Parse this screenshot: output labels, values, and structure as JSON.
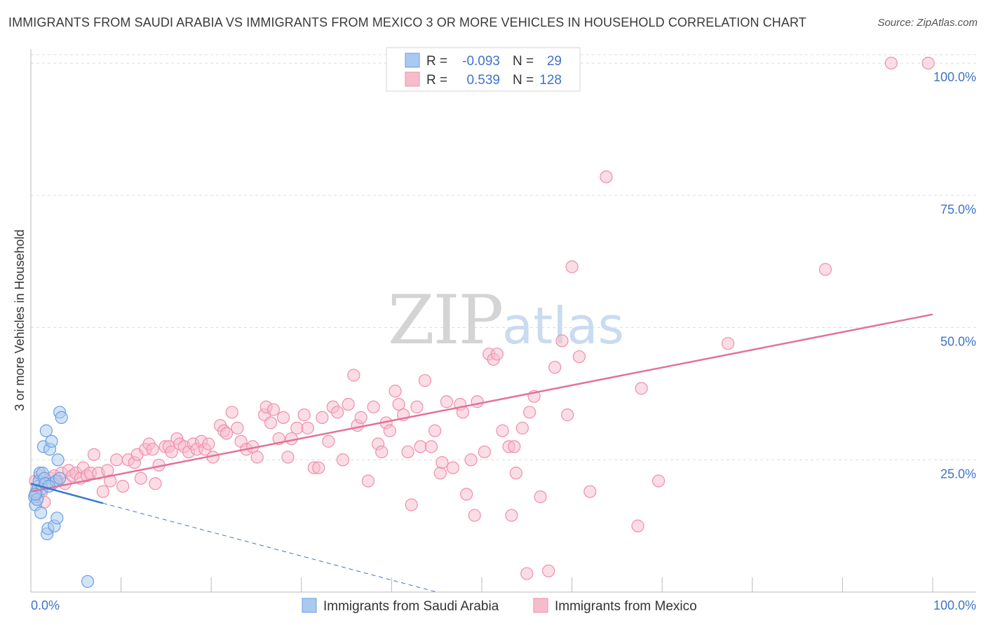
{
  "header": {
    "title": "IMMIGRANTS FROM SAUDI ARABIA VS IMMIGRANTS FROM MEXICO 3 OR MORE VEHICLES IN HOUSEHOLD CORRELATION CHART",
    "source": "Source: ZipAtlas.com"
  },
  "watermark": {
    "zip": "ZIP",
    "atlas": "atlas"
  },
  "colors": {
    "saudi_fill": "#a9c9f0",
    "saudi_stroke": "#6a9fe0",
    "saudi_line": "#3f78cf",
    "mexico_fill": "#f7bccb",
    "mexico_stroke": "#ee8fac",
    "mexico_line": "#e2729a",
    "accent_text": "#3f74c9",
    "grid": "#dcdcdc"
  },
  "legend_stats": {
    "rows": [
      {
        "r_label": "R =",
        "r_value": "-0.093",
        "n_label": "N =",
        "n_value": "29"
      },
      {
        "r_label": "R =",
        "r_value": "0.539",
        "n_label": "N =",
        "n_value": "128"
      }
    ]
  },
  "chart_data": {
    "type": "scatter",
    "title": "IMMIGRANTS FROM SAUDI ARABIA VS IMMIGRANTS FROM MEXICO 3 OR MORE VEHICLES IN HOUSEHOLD CORRELATION CHART",
    "xlabel": "",
    "ylabel": "3 or more Vehicles in Household",
    "xlim": [
      0,
      100
    ],
    "ylim": [
      0,
      102
    ],
    "x_tick_labels": {
      "min": "0.0%",
      "max": "100.0%"
    },
    "y_ticks": [
      25,
      50,
      75,
      100
    ],
    "y_tick_labels": [
      "25.0%",
      "50.0%",
      "75.0%",
      "100.0%"
    ],
    "grid": true,
    "legend_position": "bottom-center",
    "series": [
      {
        "name": "Immigrants from Saudi Arabia",
        "r": -0.093,
        "n": 29,
        "trend": {
          "x0": 0,
          "y0": 20.5,
          "x1": 8,
          "y1": 16.8,
          "solid_until": 8,
          "dashed_to_x": 45,
          "dashed_to_y": -1.5
        },
        "points": [
          [
            0.4,
            18.0
          ],
          [
            0.5,
            16.5
          ],
          [
            0.6,
            19.0
          ],
          [
            0.7,
            17.5
          ],
          [
            0.8,
            20.0
          ],
          [
            0.9,
            21.0
          ],
          [
            1.0,
            22.5
          ],
          [
            1.1,
            15.0
          ],
          [
            1.2,
            19.5
          ],
          [
            1.3,
            22.5
          ],
          [
            1.4,
            27.5
          ],
          [
            1.5,
            21.5
          ],
          [
            1.6,
            20.5
          ],
          [
            1.7,
            30.5
          ],
          [
            1.8,
            11.0
          ],
          [
            1.9,
            12.0
          ],
          [
            2.1,
            27.0
          ],
          [
            2.3,
            28.5
          ],
          [
            2.4,
            20.5
          ],
          [
            2.6,
            12.5
          ],
          [
            2.8,
            21.0
          ],
          [
            2.9,
            14.0
          ],
          [
            3.0,
            25.0
          ],
          [
            3.2,
            21.5
          ],
          [
            3.2,
            34.0
          ],
          [
            3.4,
            33.0
          ],
          [
            6.3,
            2.0
          ],
          [
            0.5,
            18.5
          ],
          [
            2.0,
            20.0
          ]
        ]
      },
      {
        "name": "Immigrants from Mexico",
        "r": 0.539,
        "n": 128,
        "trend": {
          "x0": 0,
          "y0": 19.0,
          "x1": 100,
          "y1": 52.5
        },
        "points": [
          [
            0.5,
            21.0
          ],
          [
            0.8,
            18.0
          ],
          [
            1.0,
            22.0
          ],
          [
            1.2,
            19.0
          ],
          [
            1.5,
            17.0
          ],
          [
            1.8,
            20.5
          ],
          [
            2.2,
            21.5
          ],
          [
            2.6,
            22.0
          ],
          [
            3.0,
            21.0
          ],
          [
            3.4,
            22.5
          ],
          [
            3.8,
            20.5
          ],
          [
            4.2,
            23.0
          ],
          [
            4.6,
            22.0
          ],
          [
            5.0,
            22.5
          ],
          [
            5.5,
            21.5
          ],
          [
            5.8,
            23.5
          ],
          [
            6.2,
            22.0
          ],
          [
            6.6,
            22.5
          ],
          [
            7.0,
            26.0
          ],
          [
            7.5,
            22.5
          ],
          [
            8.0,
            19.0
          ],
          [
            8.5,
            23.0
          ],
          [
            8.8,
            21.0
          ],
          [
            9.5,
            25.0
          ],
          [
            10.2,
            20.0
          ],
          [
            10.8,
            25.0
          ],
          [
            11.5,
            24.5
          ],
          [
            11.8,
            26.0
          ],
          [
            12.2,
            21.5
          ],
          [
            12.7,
            27.0
          ],
          [
            13.1,
            28.0
          ],
          [
            13.5,
            27.0
          ],
          [
            13.8,
            20.5
          ],
          [
            14.2,
            24.0
          ],
          [
            14.9,
            27.5
          ],
          [
            15.3,
            27.5
          ],
          [
            15.6,
            26.5
          ],
          [
            16.2,
            29.0
          ],
          [
            16.5,
            28.0
          ],
          [
            17.0,
            27.5
          ],
          [
            17.5,
            26.5
          ],
          [
            18.0,
            28.0
          ],
          [
            18.4,
            27.0
          ],
          [
            18.9,
            28.5
          ],
          [
            19.3,
            27.0
          ],
          [
            19.7,
            28.0
          ],
          [
            20.2,
            25.5
          ],
          [
            21.0,
            31.5
          ],
          [
            21.4,
            30.5
          ],
          [
            21.7,
            30.0
          ],
          [
            22.3,
            34.0
          ],
          [
            22.9,
            31.0
          ],
          [
            23.3,
            28.5
          ],
          [
            23.9,
            27.0
          ],
          [
            24.6,
            27.5
          ],
          [
            25.1,
            25.5
          ],
          [
            25.9,
            33.5
          ],
          [
            26.1,
            35.0
          ],
          [
            26.6,
            32.0
          ],
          [
            26.9,
            34.5
          ],
          [
            27.5,
            29.0
          ],
          [
            28.0,
            33.0
          ],
          [
            28.5,
            25.5
          ],
          [
            28.9,
            29.0
          ],
          [
            29.5,
            31.0
          ],
          [
            30.3,
            33.5
          ],
          [
            30.7,
            31.0
          ],
          [
            31.4,
            23.5
          ],
          [
            31.9,
            23.5
          ],
          [
            32.3,
            33.0
          ],
          [
            33.0,
            28.5
          ],
          [
            33.5,
            35.0
          ],
          [
            34.0,
            34.0
          ],
          [
            34.6,
            25.0
          ],
          [
            35.2,
            35.5
          ],
          [
            35.8,
            41.0
          ],
          [
            36.2,
            31.5
          ],
          [
            36.6,
            33.0
          ],
          [
            37.4,
            21.0
          ],
          [
            38.0,
            35.0
          ],
          [
            38.5,
            28.0
          ],
          [
            38.9,
            26.5
          ],
          [
            39.4,
            32.0
          ],
          [
            39.8,
            30.5
          ],
          [
            40.4,
            38.0
          ],
          [
            40.8,
            35.5
          ],
          [
            41.3,
            33.5
          ],
          [
            41.8,
            26.5
          ],
          [
            42.2,
            16.5
          ],
          [
            42.8,
            35.0
          ],
          [
            43.2,
            27.5
          ],
          [
            43.7,
            40.0
          ],
          [
            44.4,
            27.5
          ],
          [
            44.8,
            30.5
          ],
          [
            45.4,
            22.5
          ],
          [
            45.6,
            24.5
          ],
          [
            46.1,
            36.0
          ],
          [
            46.8,
            23.5
          ],
          [
            47.6,
            35.5
          ],
          [
            47.9,
            34.0
          ],
          [
            48.3,
            18.5
          ],
          [
            48.8,
            25.0
          ],
          [
            49.2,
            14.5
          ],
          [
            49.5,
            36.0
          ],
          [
            50.3,
            26.5
          ],
          [
            50.8,
            45.0
          ],
          [
            51.3,
            44.0
          ],
          [
            51.7,
            45.0
          ],
          [
            52.3,
            30.5
          ],
          [
            53.0,
            27.5
          ],
          [
            53.3,
            14.5
          ],
          [
            53.6,
            27.5
          ],
          [
            53.8,
            22.5
          ],
          [
            54.5,
            31.0
          ],
          [
            55.0,
            3.5
          ],
          [
            55.3,
            34.0
          ],
          [
            55.8,
            37.0
          ],
          [
            56.5,
            18.0
          ],
          [
            57.4,
            4.0
          ],
          [
            58.1,
            42.5
          ],
          [
            58.9,
            47.5
          ],
          [
            59.5,
            33.5
          ],
          [
            60.0,
            61.5
          ],
          [
            60.8,
            44.5
          ],
          [
            62.0,
            19.0
          ],
          [
            63.8,
            78.5
          ],
          [
            67.3,
            12.5
          ],
          [
            67.7,
            38.5
          ],
          [
            69.6,
            21.0
          ],
          [
            77.3,
            47.0
          ],
          [
            88.1,
            61.0
          ],
          [
            95.4,
            100.0
          ],
          [
            99.5,
            100.0
          ]
        ]
      }
    ]
  }
}
